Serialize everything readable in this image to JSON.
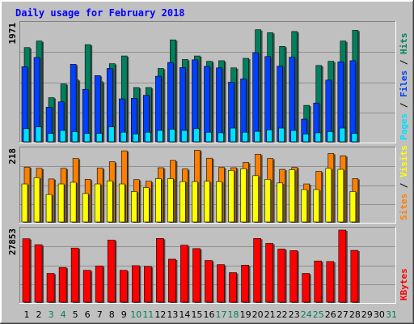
{
  "chart_data": [
    {
      "type": "bar",
      "title": "Daily usage for February 2018",
      "x": [
        "1",
        "2",
        "3",
        "4",
        "5",
        "6",
        "7",
        "8",
        "9",
        "10",
        "11",
        "12",
        "13",
        "14",
        "15",
        "16",
        "17",
        "18",
        "19",
        "20",
        "21",
        "22",
        "23",
        "24",
        "25",
        "26",
        "27",
        "28",
        "29",
        "30",
        "31"
      ],
      "weekend_days": [
        "3",
        "4",
        "10",
        "11",
        "17",
        "18",
        "24",
        "25",
        "31"
      ],
      "ylim": [
        0,
        1971
      ],
      "y_max_label": "1971",
      "axis_labels": {
        "pages": "Pages",
        "files": "Files",
        "hits": "Hits",
        "sep": " / "
      },
      "series": [
        {
          "name": "Hits",
          "color": "#00805c",
          "values": [
            1580,
            1690,
            740,
            970,
            1040,
            1630,
            1010,
            1310,
            1440,
            910,
            910,
            1230,
            1710,
            1380,
            1440,
            1350,
            1360,
            1240,
            1400,
            1880,
            1830,
            1600,
            1850,
            610,
            1280,
            1350,
            1690,
            1870,
            0,
            0,
            0
          ]
        },
        {
          "name": "Files",
          "color": "#0040ff",
          "values": [
            1260,
            1415,
            580,
            670,
            1300,
            880,
            1110,
            1230,
            720,
            730,
            780,
            1100,
            1330,
            1245,
            1375,
            1265,
            1240,
            1000,
            1055,
            1495,
            1430,
            1270,
            1420,
            380,
            650,
            1035,
            1340,
            1360,
            0,
            0,
            0
          ]
        },
        {
          "name": "Pages",
          "color": "#00e0ff",
          "values": [
            220,
            250,
            140,
            190,
            170,
            140,
            140,
            250,
            160,
            130,
            160,
            190,
            210,
            190,
            220,
            160,
            150,
            230,
            160,
            175,
            200,
            230,
            190,
            130,
            150,
            170,
            230,
            140,
            0,
            0,
            0
          ]
        }
      ]
    },
    {
      "type": "bar",
      "x": [
        "1",
        "2",
        "3",
        "4",
        "5",
        "6",
        "7",
        "8",
        "9",
        "10",
        "11",
        "12",
        "13",
        "14",
        "15",
        "16",
        "17",
        "18",
        "19",
        "20",
        "21",
        "22",
        "23",
        "24",
        "25",
        "26",
        "27",
        "28",
        "29",
        "30",
        "31"
      ],
      "ylim": [
        0,
        218
      ],
      "y_max_label": "218",
      "axis_labels": {
        "sites": "Sites",
        "visits": "Visits",
        "sep": " / "
      },
      "series": [
        {
          "name": "Visits",
          "color": "#ff8000",
          "values": [
            166,
            162,
            130,
            162,
            192,
            129,
            163,
            182,
            215,
            128,
            123,
            164,
            186,
            160,
            217,
            193,
            165,
            164,
            180,
            205,
            192,
            159,
            165,
            115,
            153,
            207,
            200,
            131,
            0,
            0,
            0
          ]
        },
        {
          "name": "Sites",
          "color": "#ffff00",
          "values": [
            115,
            134,
            83,
            115,
            120,
            86,
            115,
            124,
            115,
            92,
            104,
            131,
            131,
            122,
            122,
            123,
            122,
            156,
            161,
            140,
            129,
            118,
            158,
            98,
            98,
            162,
            159,
            92,
            0,
            0,
            0
          ]
        }
      ]
    },
    {
      "type": "bar",
      "x": [
        "1",
        "2",
        "3",
        "4",
        "5",
        "6",
        "7",
        "8",
        "9",
        "10",
        "11",
        "12",
        "13",
        "14",
        "15",
        "16",
        "17",
        "18",
        "19",
        "20",
        "21",
        "22",
        "23",
        "24",
        "25",
        "26",
        "27",
        "28",
        "29",
        "30",
        "31"
      ],
      "ylim": [
        0,
        27853
      ],
      "y_max_label": "27853",
      "axis_labels": {
        "kbytes": "KBytes"
      },
      "series": [
        {
          "name": "KBytes",
          "color": "#ff0000",
          "values": [
            24500,
            22200,
            11100,
            13400,
            20900,
            12300,
            14000,
            24000,
            12300,
            14100,
            13800,
            24600,
            16600,
            22000,
            20700,
            16100,
            14500,
            11400,
            14300,
            24600,
            22700,
            20500,
            19900,
            11100,
            15900,
            15700,
            27853,
            20000,
            0,
            0,
            0
          ]
        }
      ]
    }
  ],
  "colors": {
    "panel_bg": "#c0c0c0",
    "plot_bg": "#c0c0c0",
    "title_color": "#0000ff",
    "weekday_label": "#000000",
    "weekend_label": "#00805c"
  }
}
